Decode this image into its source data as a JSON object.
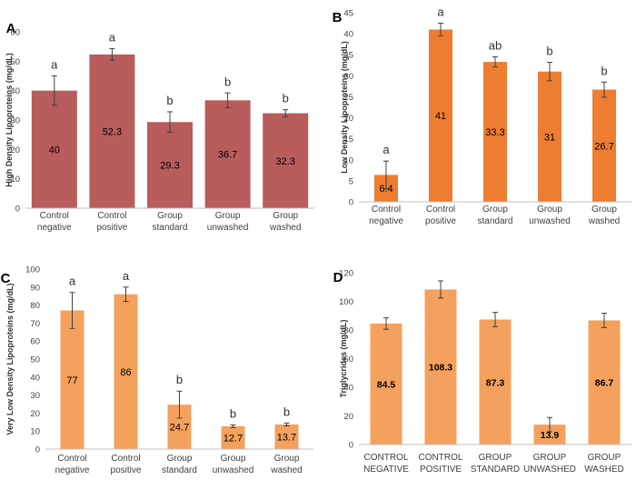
{
  "chart_data": [
    {
      "panel": "A",
      "type": "bar",
      "categories": [
        [
          "Control",
          "negative"
        ],
        [
          "Control",
          "positive"
        ],
        [
          "Group",
          "standard"
        ],
        [
          "Group",
          "unwashed"
        ],
        [
          "Group",
          "washed"
        ]
      ],
      "values": [
        40,
        52.3,
        29.3,
        36.7,
        32.3
      ],
      "value_labels": [
        "40",
        "52.3",
        "29.3",
        "36.7",
        "32.3"
      ],
      "errors": [
        5,
        2,
        3.5,
        2.5,
        1.2
      ],
      "letters": [
        "a",
        "a",
        "b",
        "b",
        "b"
      ],
      "ylabel": "High Density Lipoproteins (mg/dL)",
      "ylim": [
        0,
        60
      ],
      "yticks": [
        0,
        10,
        20,
        30,
        40,
        50,
        60
      ],
      "color": "#b85c5c"
    },
    {
      "panel": "B",
      "type": "bar",
      "categories": [
        [
          "Control",
          "negative"
        ],
        [
          "Control",
          "positive"
        ],
        [
          "Group",
          "standard"
        ],
        [
          "Group",
          "unwashed"
        ],
        [
          "Group",
          "washed"
        ]
      ],
      "values": [
        6.4,
        41,
        33.3,
        31,
        26.7
      ],
      "value_labels": [
        "6.4",
        "41",
        "33.3",
        "31",
        "26.7"
      ],
      "errors": [
        3.3,
        1.5,
        1.2,
        2.2,
        1.8
      ],
      "letters": [
        "a",
        "a",
        "ab",
        "b",
        "b"
      ],
      "ylabel": "Low Density Lipoproteins (mg/dL)",
      "ylim": [
        0,
        45
      ],
      "yticks": [
        0,
        5,
        10,
        15,
        20,
        25,
        30,
        35,
        40,
        45
      ],
      "color": "#ed7d31"
    },
    {
      "panel": "C",
      "type": "bar",
      "categories": [
        [
          "Control",
          "negative"
        ],
        [
          "Control",
          "positive"
        ],
        [
          "Group",
          "standard"
        ],
        [
          "Group",
          "unwashed"
        ],
        [
          "Group",
          "washed"
        ]
      ],
      "values": [
        77,
        86,
        24.7,
        12.7,
        13.7
      ],
      "value_labels": [
        "77",
        "86",
        "24.7",
        "12.7",
        "13.7"
      ],
      "errors": [
        10,
        4,
        7.5,
        0.8,
        0.8
      ],
      "letters": [
        "a",
        "a",
        "b",
        "b",
        "b"
      ],
      "ylabel": "Very Low Density Lipoproteins (mg/dL)",
      "ylim": [
        0,
        100
      ],
      "yticks": [
        0,
        10,
        20,
        30,
        40,
        50,
        60,
        70,
        80,
        90,
        100
      ],
      "color": "#f4a15d"
    },
    {
      "panel": "D",
      "type": "bar",
      "categories": [
        [
          "CONTROL",
          "NEGATIVE"
        ],
        [
          "CONTROL",
          "POSITIVE"
        ],
        [
          "GROUP",
          "STANDARD"
        ],
        [
          "GROUP",
          "UNWASHED"
        ],
        [
          "GROUP",
          "WASHED"
        ]
      ],
      "values": [
        84.5,
        108.3,
        87.3,
        13.9,
        86.7
      ],
      "value_labels": [
        "84.5",
        "108.3",
        "87.3",
        "13.9",
        "86.7"
      ],
      "errors": [
        4,
        6,
        5,
        5,
        5
      ],
      "letters": [
        "",
        "",
        "",
        "",
        ""
      ],
      "ylabel": "Triglycrides (mg/dL)",
      "ylim": [
        0,
        120
      ],
      "yticks": [
        0,
        20,
        40,
        60,
        80,
        100,
        120
      ],
      "color": "#f4a15d"
    }
  ]
}
